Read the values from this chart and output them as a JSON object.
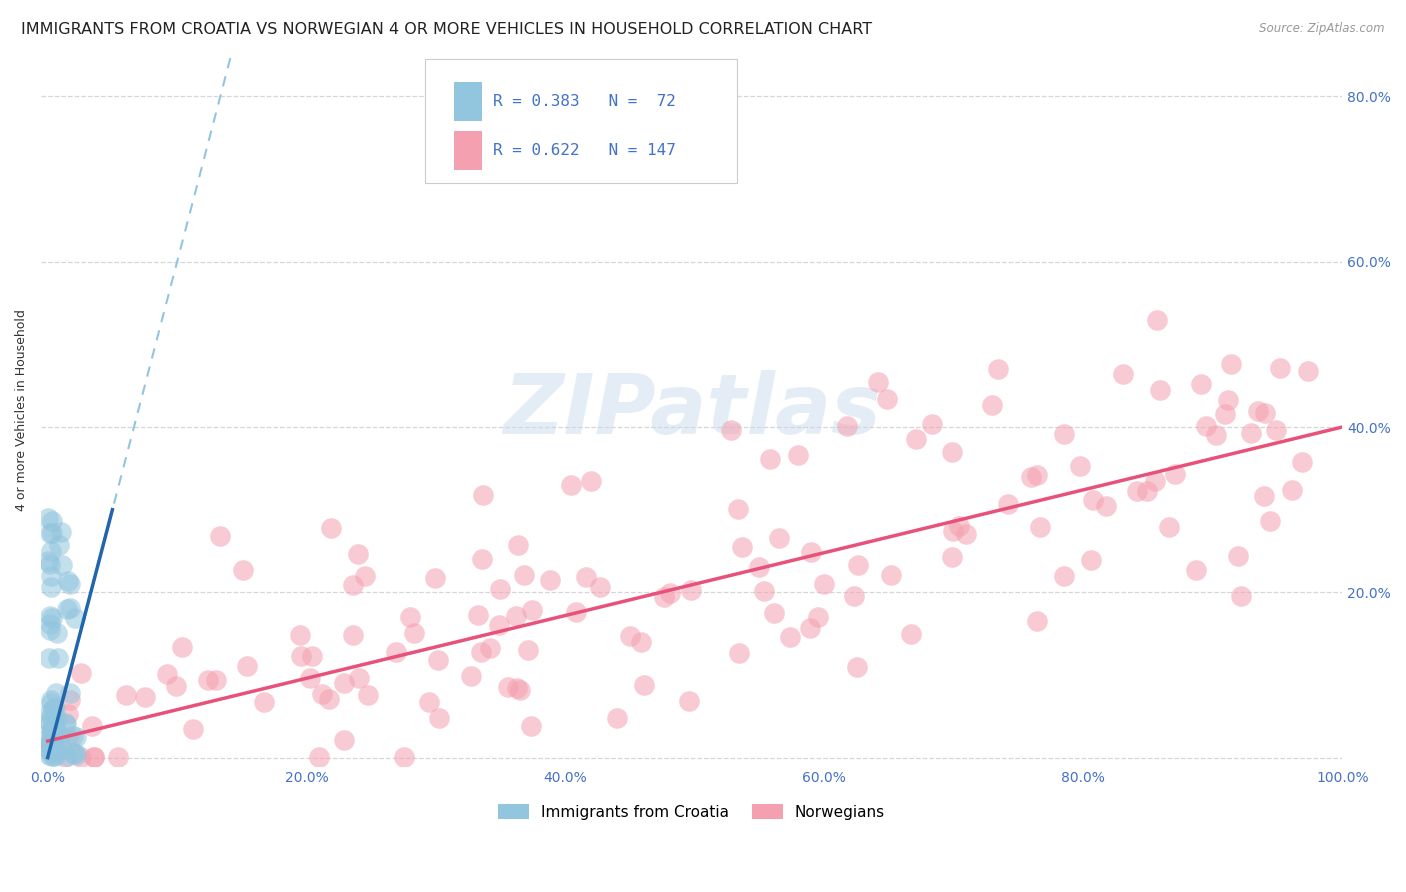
{
  "title": "IMMIGRANTS FROM CROATIA VS NORWEGIAN 4 OR MORE VEHICLES IN HOUSEHOLD CORRELATION CHART",
  "source": "Source: ZipAtlas.com",
  "ylabel": "4 or more Vehicles in Household",
  "xlim": [
    -0.005,
    1.0
  ],
  "ylim": [
    -0.01,
    0.85
  ],
  "xticks": [
    0.0,
    0.2,
    0.4,
    0.6,
    0.8,
    1.0
  ],
  "yticks": [
    0.0,
    0.2,
    0.4,
    0.6,
    0.8
  ],
  "xticklabels": [
    "0.0%",
    "20.0%",
    "40.0%",
    "60.0%",
    "80.0%",
    "100.0%"
  ],
  "yticklabels_right": [
    "",
    "20.0%",
    "40.0%",
    "60.0%",
    "80.0%"
  ],
  "legend_r1": "R = 0.383",
  "legend_n1": "N =  72",
  "legend_r2": "R = 0.622",
  "legend_n2": "N = 147",
  "croatia_color": "#92c5de",
  "norway_color": "#f4a0b0",
  "trend_croatia_dashed_color": "#92c5de",
  "trend_croatia_solid_color": "#2166ac",
  "trend_norway_color": "#e8527a",
  "title_fontsize": 11.5,
  "tick_fontsize": 10,
  "tick_color": "#4472c4",
  "watermark": "ZIPatlas",
  "watermark_color": "#c5d8ea",
  "background_color": "#ffffff",
  "grid_color": "#cccccc"
}
